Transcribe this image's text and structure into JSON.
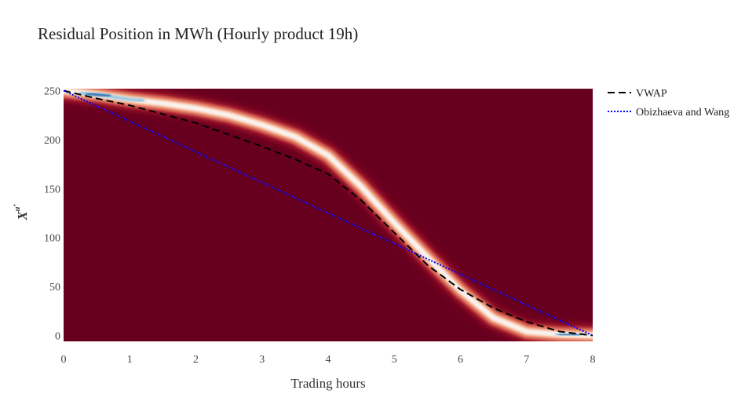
{
  "chart_data": {
    "type": "heatmap",
    "title": "Residual Position in MWh (Hourly product 19h)",
    "xlabel": "Trading hours",
    "ylabel": "X",
    "ylabel_superscript": "u",
    "ylabel_super_super": "+",
    "xlim": [
      0,
      8
    ],
    "ylim": [
      -6,
      252
    ],
    "x_ticks": [
      "0",
      "1",
      "2",
      "3",
      "4",
      "5",
      "6",
      "7",
      "8"
    ],
    "y_ticks": [
      "0",
      "50",
      "100",
      "150",
      "200",
      "250"
    ],
    "x_tick_values": [
      0,
      1,
      2,
      3,
      4,
      5,
      6,
      7,
      8
    ],
    "y_tick_values": [
      0,
      50,
      100,
      150,
      200,
      250
    ],
    "grid": false,
    "legend_position": "top-right",
    "heatmap": {
      "background_color": "#67001f",
      "colorscale": [
        "#67001f",
        "#b2182b",
        "#d6604d",
        "#f4a582",
        "#fddbc7",
        "#f7f7f7",
        "#d1e5f0",
        "#92c5de",
        "#4393c3",
        "#2166ac"
      ],
      "band_center": {
        "x": [
          0,
          0.5,
          1,
          1.5,
          2,
          2.5,
          3,
          3.5,
          4,
          4.5,
          5,
          5.5,
          6,
          6.5,
          7,
          7.5,
          8
        ],
        "y": [
          250,
          246,
          241,
          237,
          232,
          225,
          215,
          203,
          184,
          152,
          115,
          80,
          46,
          18,
          4,
          1,
          0
        ]
      }
    },
    "series": [
      {
        "name": "VWAP",
        "color": "#000000",
        "dash": "dashed",
        "x": [
          0,
          0.5,
          1,
          1.5,
          2,
          2.5,
          3,
          3.5,
          4,
          4.5,
          5,
          5.5,
          6,
          6.5,
          7,
          7.5,
          8
        ],
        "y": [
          250,
          242,
          235,
          226,
          217,
          205,
          193,
          180,
          165,
          138,
          105,
          72,
          47,
          28,
          14,
          4,
          0
        ]
      },
      {
        "name": "Obizhaeva and Wang",
        "color": "#0000ff",
        "dash": "dotted",
        "x": [
          0,
          8
        ],
        "y": [
          250,
          0
        ]
      }
    ]
  }
}
